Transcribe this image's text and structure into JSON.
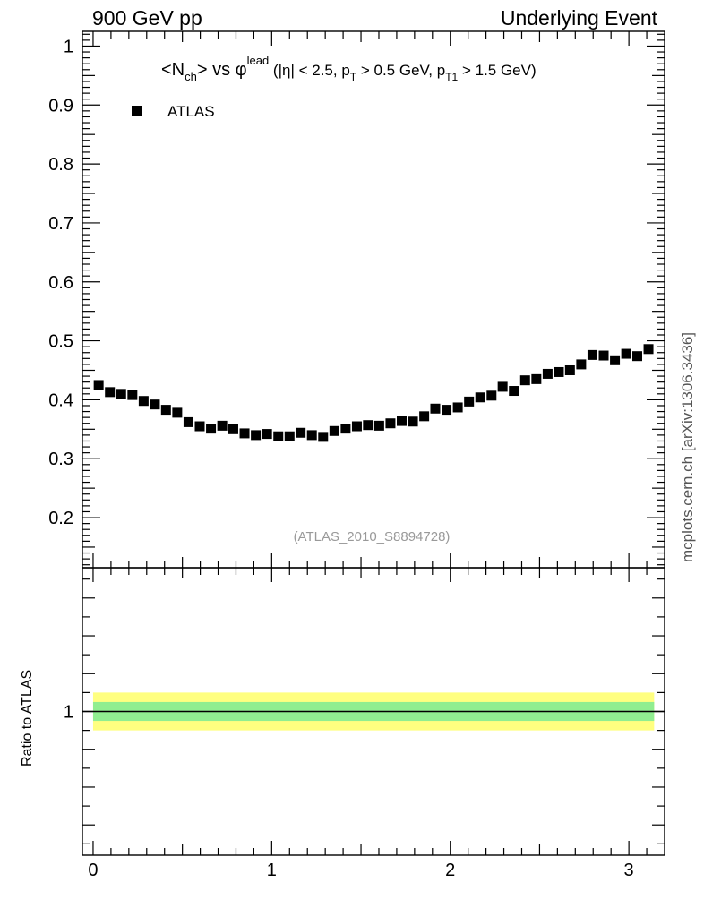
{
  "header": {
    "left": "900 GeV pp",
    "right": "Underlying Event"
  },
  "side_label": "mcplots.cern.ch [arXiv:1306.3436]",
  "chart_data": {
    "type": "scatter",
    "title": {
      "main": "<N",
      "main_sub": "ch",
      "main_mid": "> vs φ",
      "main_sup": "lead",
      "cut_1": " (|η| < 2.5, p",
      "cut_1_sub": "T",
      "cut_2": " > 0.5 GeV, p",
      "cut_2_sub": "T1",
      "cut_3": " > 1.5 GeV)"
    },
    "legend": [
      {
        "label": "ATLAS",
        "marker": "square",
        "color": "#000000"
      }
    ],
    "watermark": "(ATLAS_2010_S8894728)",
    "x_range": [
      -0.06,
      3.2
    ],
    "main_y_range": [
      0.115,
      1.025
    ],
    "x_ticks": [
      "0",
      "1",
      "2",
      "3"
    ],
    "main_y_ticks": [
      "0.2",
      "0.3",
      "0.4",
      "0.5",
      "0.6",
      "0.7",
      "0.8",
      "0.9",
      "1"
    ],
    "series": [
      {
        "name": "ATLAS",
        "x": [
          0.031,
          0.094,
          0.157,
          0.22,
          0.283,
          0.346,
          0.408,
          0.471,
          0.534,
          0.597,
          0.66,
          0.723,
          0.785,
          0.848,
          0.911,
          0.974,
          1.037,
          1.1,
          1.162,
          1.225,
          1.288,
          1.351,
          1.414,
          1.477,
          1.539,
          1.602,
          1.665,
          1.728,
          1.791,
          1.854,
          1.916,
          1.979,
          2.042,
          2.105,
          2.168,
          2.231,
          2.293,
          2.356,
          2.419,
          2.482,
          2.545,
          2.608,
          2.67,
          2.733,
          2.796,
          2.859,
          2.922,
          2.985,
          3.047,
          3.11
        ],
        "y": [
          0.425,
          0.413,
          0.41,
          0.408,
          0.398,
          0.392,
          0.383,
          0.378,
          0.362,
          0.355,
          0.351,
          0.356,
          0.35,
          0.343,
          0.34,
          0.342,
          0.338,
          0.338,
          0.344,
          0.34,
          0.337,
          0.347,
          0.351,
          0.355,
          0.357,
          0.356,
          0.36,
          0.364,
          0.363,
          0.372,
          0.385,
          0.383,
          0.387,
          0.397,
          0.404,
          0.407,
          0.422,
          0.415,
          0.433,
          0.435,
          0.444,
          0.447,
          0.45,
          0.46,
          0.476,
          0.475,
          0.467,
          0.478,
          0.474,
          0.486
        ]
      }
    ],
    "ratio": {
      "ylabel": "Ratio to ATLAS",
      "y_range": [
        0.62,
        1.38
      ],
      "y_ticks": [
        "1"
      ],
      "reference": 1.0,
      "band_inner": [
        0.975,
        1.025
      ],
      "band_outer": [
        0.95,
        1.05
      ],
      "band_inner_color": "#90ee90",
      "band_outer_color": "#ffff80"
    }
  }
}
